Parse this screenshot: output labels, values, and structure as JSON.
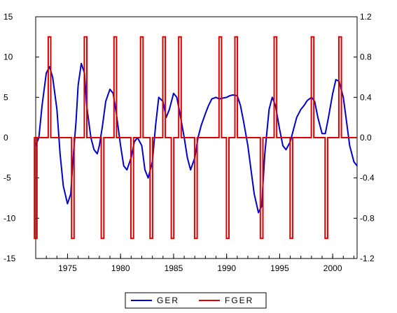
{
  "chart_data": {
    "type": "line",
    "title": "",
    "xlabel": "",
    "ylabel_left": "",
    "ylabel_right": "",
    "x_range": [
      1972.0,
      2002.3
    ],
    "x_ticks": [
      1975,
      1980,
      1985,
      1990,
      1995,
      2000
    ],
    "left_axis": {
      "range": [
        -15,
        15
      ],
      "ticks": [
        15,
        10,
        5,
        0,
        -5,
        -10,
        -15
      ]
    },
    "right_axis": {
      "range": [
        -1.2,
        1.2
      ],
      "ticks": [
        "1.2",
        "0.8",
        "0.4",
        "0.0",
        "-0.4",
        "-0.8",
        "-1.2"
      ]
    },
    "grid": false,
    "legend_position": "bottom-center",
    "series": [
      {
        "name": "GER",
        "axis": "left",
        "color": "#0000cc",
        "x": [
          1972.0,
          1972.3,
          1972.6,
          1973.0,
          1973.3,
          1973.6,
          1974.0,
          1974.3,
          1974.6,
          1975.0,
          1975.3,
          1975.5,
          1975.8,
          1976.0,
          1976.3,
          1976.6,
          1976.8,
          1977.2,
          1977.5,
          1977.8,
          1978.0,
          1978.3,
          1978.6,
          1979.0,
          1979.3,
          1979.6,
          1980.0,
          1980.3,
          1980.6,
          1981.0,
          1981.3,
          1981.6,
          1982.0,
          1982.3,
          1982.6,
          1983.0,
          1983.3,
          1983.6,
          1984.0,
          1984.3,
          1984.6,
          1985.0,
          1985.3,
          1985.6,
          1986.0,
          1986.3,
          1986.6,
          1987.0,
          1987.3,
          1987.6,
          1988.0,
          1988.3,
          1988.6,
          1989.0,
          1989.3,
          1989.6,
          1990.0,
          1990.3,
          1990.6,
          1991.0,
          1991.3,
          1991.6,
          1992.0,
          1992.3,
          1992.6,
          1993.0,
          1993.3,
          1993.6,
          1994.0,
          1994.3,
          1994.6,
          1995.0,
          1995.3,
          1995.6,
          1996.0,
          1996.3,
          1996.6,
          1997.0,
          1997.3,
          1997.6,
          1998.0,
          1998.3,
          1998.6,
          1999.0,
          1999.3,
          1999.6,
          2000.0,
          2000.3,
          2000.6,
          2001.0,
          2001.3,
          2001.6,
          2002.0,
          2002.3
        ],
        "values": [
          -1.0,
          0.0,
          4.0,
          8.0,
          8.8,
          7.5,
          3.5,
          -2.0,
          -6.0,
          -8.2,
          -7.0,
          -3.0,
          2.0,
          6.5,
          9.2,
          8.0,
          4.0,
          0.0,
          -1.5,
          -2.0,
          -1.0,
          1.5,
          4.5,
          6.0,
          5.5,
          3.0,
          -1.0,
          -3.5,
          -4.0,
          -2.5,
          -0.5,
          0.0,
          -1.0,
          -4.0,
          -5.0,
          -3.0,
          1.5,
          5.0,
          4.5,
          2.5,
          3.5,
          5.5,
          5.0,
          3.0,
          0.0,
          -2.5,
          -4.0,
          -2.5,
          0.0,
          1.5,
          3.0,
          4.0,
          4.8,
          5.0,
          4.8,
          4.9,
          5.0,
          5.2,
          5.3,
          5.2,
          4.0,
          2.0,
          -1.0,
          -4.0,
          -7.0,
          -9.3,
          -8.5,
          -2.0,
          3.5,
          5.0,
          4.0,
          1.0,
          -1.0,
          -1.5,
          -0.5,
          1.0,
          2.5,
          3.5,
          4.0,
          4.6,
          5.0,
          4.5,
          2.5,
          0.5,
          0.5,
          2.5,
          5.5,
          7.2,
          7.0,
          5.0,
          2.0,
          -1.0,
          -3.0,
          -3.5
        ]
      },
      {
        "name": "FGER",
        "axis": "right",
        "color": "#dd0000",
        "baseline": 0.0,
        "x_spikes": [
          {
            "x": 1972.0,
            "v": -1.0
          },
          {
            "x": 1973.3,
            "v": 1.0
          },
          {
            "x": 1975.5,
            "v": -1.0
          },
          {
            "x": 1976.7,
            "v": 1.0
          },
          {
            "x": 1978.3,
            "v": -1.0
          },
          {
            "x": 1979.5,
            "v": 1.0
          },
          {
            "x": 1981.1,
            "v": -1.0
          },
          {
            "x": 1982.0,
            "v": 1.0
          },
          {
            "x": 1982.9,
            "v": -1.0
          },
          {
            "x": 1984.1,
            "v": 1.0
          },
          {
            "x": 1984.9,
            "v": -1.0
          },
          {
            "x": 1985.6,
            "v": 1.0
          },
          {
            "x": 1987.1,
            "v": -1.0
          },
          {
            "x": 1989.4,
            "v": 1.0
          },
          {
            "x": 1990.1,
            "v": -1.0
          },
          {
            "x": 1990.9,
            "v": 1.0
          },
          {
            "x": 1993.3,
            "v": -1.0
          },
          {
            "x": 1994.6,
            "v": 1.0
          },
          {
            "x": 1996.1,
            "v": -1.0
          },
          {
            "x": 1998.1,
            "v": 1.0
          },
          {
            "x": 1999.4,
            "v": -1.0
          },
          {
            "x": 2000.7,
            "v": 1.0
          }
        ]
      }
    ],
    "legend_labels": [
      "GER",
      "FGER"
    ]
  }
}
